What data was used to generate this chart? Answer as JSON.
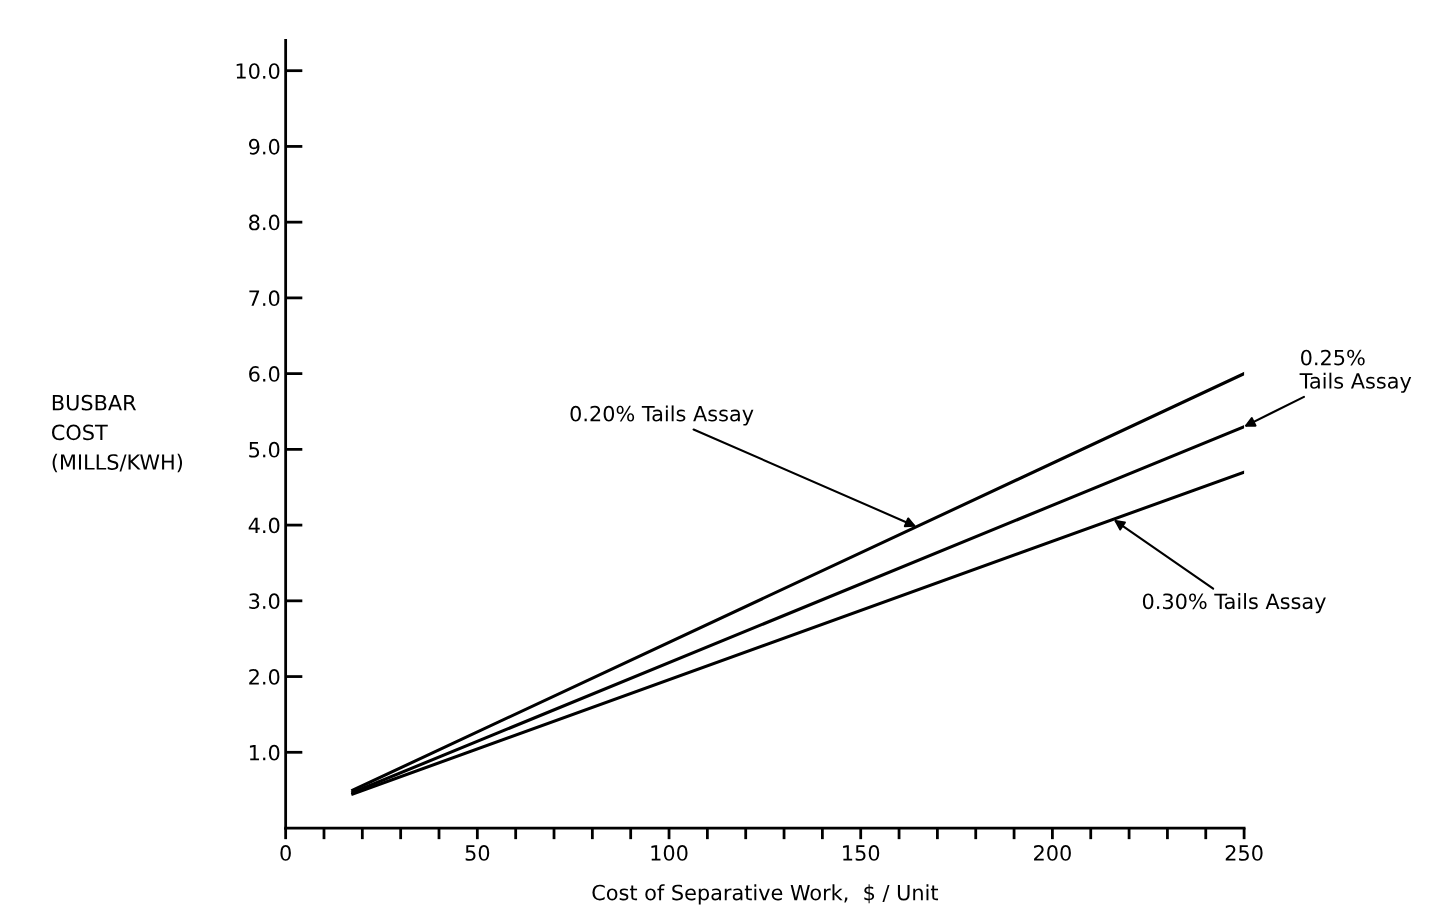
{
  "chart_data": {
    "type": "line",
    "xlabel": "Cost of Separative Work,  $ / Unit",
    "ylabel": "BUSBAR\nCOST\n(MILLS/KWH)",
    "series": [
      {
        "color": "#000000",
        "values": [
          0.5,
          6.0
        ]
      },
      {
        "color": "#000000",
        "values": [
          0.47,
          5.3
        ]
      },
      {
        "color": "#000000",
        "values": [
          0.45,
          4.7
        ]
      }
    ],
    "annotations": [
      {
        "text": "0.20% Tails Assay",
        "x": 164.5,
        "y": 3.98
      },
      {
        "text": "0.25%\nTails Assay",
        "x": 250,
        "y": 5.3
      },
      {
        "text": "0.30% Tails Assay",
        "x": 216,
        "y": 4.07
      }
    ],
    "x": [
      17.5,
      250
    ],
    "xlim": [
      0,
      250
    ],
    "ylim": [
      0,
      10.4
    ],
    "xticks": [
      0,
      {
        "value": 10,
        "label": null
      },
      {
        "value": 20,
        "label": null
      },
      {
        "value": 30,
        "label": null
      },
      {
        "value": 40,
        "label": null
      },
      50,
      {
        "value": 60,
        "label": null
      },
      {
        "value": 70,
        "label": null
      },
      {
        "value": 80,
        "label": null
      },
      {
        "value": 90,
        "label": null
      },
      100,
      {
        "value": 110,
        "label": null
      },
      {
        "value": 120,
        "label": null
      },
      {
        "value": 130,
        "label": null
      },
      {
        "value": 140,
        "label": null
      },
      150,
      {
        "value": 160,
        "label": null
      },
      {
        "value": 170,
        "label": null
      },
      {
        "value": 180,
        "label": null
      },
      {
        "value": 190,
        "label": null
      },
      200,
      {
        "value": 210,
        "label": null
      },
      {
        "value": 220,
        "label": null
      },
      {
        "value": 230,
        "label": null
      },
      {
        "value": 240,
        "label": null
      },
      250
    ],
    "yticks": [
      {
        "value": 1,
        "label": "1.0"
      },
      {
        "value": 2,
        "label": "2.0"
      },
      {
        "value": 3,
        "label": "3.0"
      },
      {
        "value": 4,
        "label": "4.0"
      },
      {
        "value": 5,
        "label": "5.0"
      },
      {
        "value": 6,
        "label": "6.0"
      },
      {
        "value": 7,
        "label": "7.0"
      },
      {
        "value": 8,
        "label": "8.0"
      },
      {
        "value": 9,
        "label": "9.0"
      },
      {
        "value": 10,
        "label": "10.0"
      }
    ],
    "grid": false,
    "legend": false,
    "line_style": "solid",
    "marker": "none"
  }
}
